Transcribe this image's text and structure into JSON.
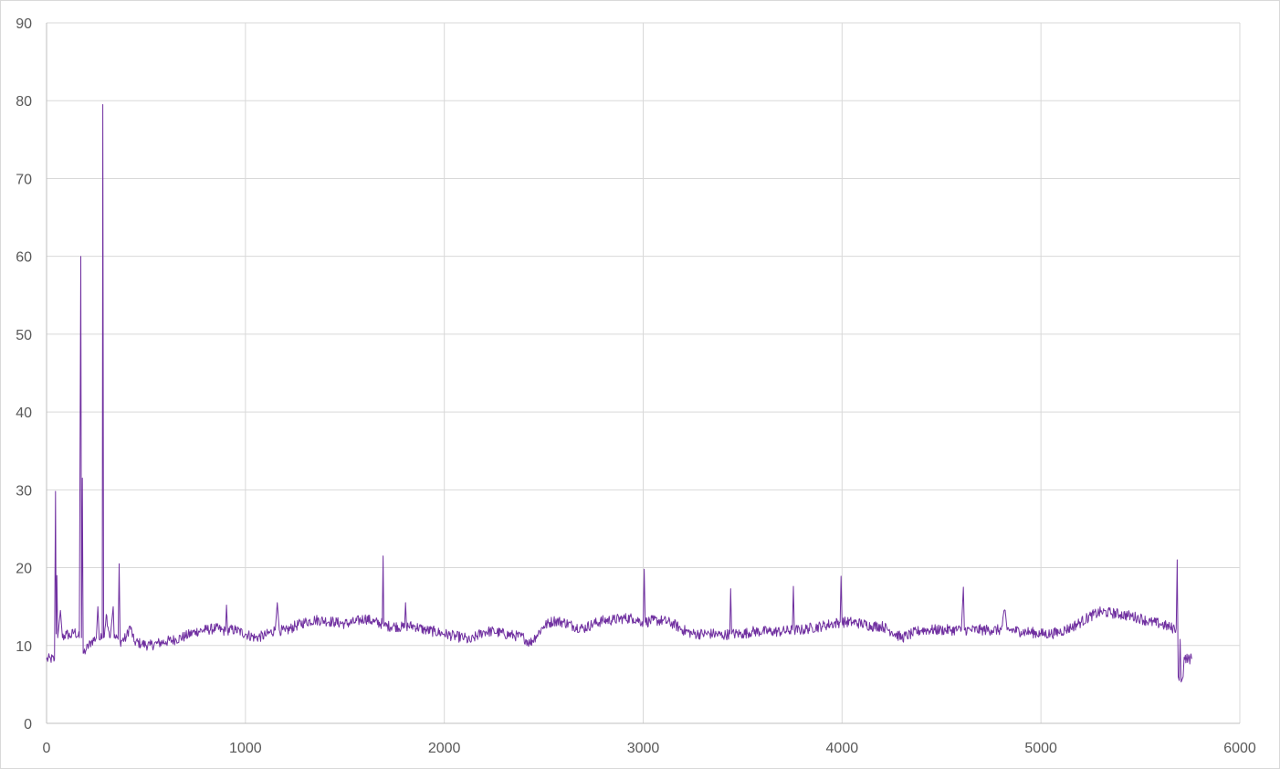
{
  "chart_data": {
    "type": "line",
    "title": "",
    "xlabel": "",
    "ylabel": "",
    "xlim": [
      0,
      6000
    ],
    "ylim": [
      0,
      90
    ],
    "x_ticks": [
      0,
      1000,
      2000,
      3000,
      4000,
      5000,
      6000
    ],
    "y_ticks": [
      0,
      10,
      20,
      30,
      40,
      50,
      60,
      70,
      80,
      90
    ],
    "grid": "major vertical and horizontal",
    "legend": "none",
    "series": [
      {
        "color": "#7030a0",
        "points": [
          [
            0,
            8.2
          ],
          [
            20,
            8.3
          ],
          [
            40,
            8.2
          ],
          [
            45,
            29.8
          ],
          [
            48,
            11.5
          ],
          [
            52,
            19
          ],
          [
            56,
            11
          ],
          [
            70,
            14.5
          ],
          [
            80,
            11
          ],
          [
            100,
            11.5
          ],
          [
            120,
            11.2
          ],
          [
            140,
            11.8
          ],
          [
            165,
            11
          ],
          [
            172,
            60
          ],
          [
            176,
            11
          ],
          [
            180,
            31.5
          ],
          [
            184,
            9
          ],
          [
            200,
            9.5
          ],
          [
            225,
            10.5
          ],
          [
            250,
            11
          ],
          [
            258,
            15
          ],
          [
            265,
            10.8
          ],
          [
            280,
            11
          ],
          [
            283,
            79.5
          ],
          [
            287,
            11
          ],
          [
            300,
            14
          ],
          [
            320,
            11
          ],
          [
            335,
            15
          ],
          [
            340,
            11
          ],
          [
            360,
            10.8
          ],
          [
            365,
            20.5
          ],
          [
            370,
            10.5
          ],
          [
            400,
            11
          ],
          [
            420,
            12.5
          ],
          [
            440,
            10.5
          ],
          [
            480,
            10.2
          ],
          [
            520,
            10
          ],
          [
            560,
            10.3
          ],
          [
            600,
            10.5
          ],
          [
            650,
            10.8
          ],
          [
            700,
            11.2
          ],
          [
            750,
            11.8
          ],
          [
            800,
            12
          ],
          [
            850,
            12.2
          ],
          [
            880,
            12
          ],
          [
            900,
            11.8
          ],
          [
            905,
            15.2
          ],
          [
            910,
            12
          ],
          [
            950,
            12
          ],
          [
            1000,
            11.5
          ],
          [
            1050,
            11
          ],
          [
            1100,
            11.3
          ],
          [
            1150,
            12
          ],
          [
            1160,
            15.5
          ],
          [
            1170,
            12
          ],
          [
            1200,
            11.8
          ],
          [
            1250,
            12.5
          ],
          [
            1300,
            13
          ],
          [
            1350,
            13.3
          ],
          [
            1400,
            13.2
          ],
          [
            1450,
            13
          ],
          [
            1500,
            12.8
          ],
          [
            1550,
            13
          ],
          [
            1600,
            13.5
          ],
          [
            1650,
            13
          ],
          [
            1688,
            12.8
          ],
          [
            1692,
            21.5
          ],
          [
            1696,
            12.5
          ],
          [
            1750,
            12.5
          ],
          [
            1800,
            12.3
          ],
          [
            1805,
            15.5
          ],
          [
            1810,
            12.5
          ],
          [
            1850,
            12.5
          ],
          [
            1900,
            12
          ],
          [
            1950,
            11.8
          ],
          [
            2000,
            11.5
          ],
          [
            2050,
            11.2
          ],
          [
            2100,
            11
          ],
          [
            2130,
            10.5
          ],
          [
            2150,
            11
          ],
          [
            2200,
            11.8
          ],
          [
            2250,
            11.8
          ],
          [
            2300,
            11.5
          ],
          [
            2350,
            11.3
          ],
          [
            2400,
            11
          ],
          [
            2430,
            10.3
          ],
          [
            2460,
            11.2
          ],
          [
            2500,
            12.5
          ],
          [
            2550,
            13.2
          ],
          [
            2600,
            13
          ],
          [
            2650,
            12.5
          ],
          [
            2700,
            12.2
          ],
          [
            2750,
            12.8
          ],
          [
            2800,
            13.2
          ],
          [
            2850,
            13.3
          ],
          [
            2900,
            13.5
          ],
          [
            2950,
            13.5
          ],
          [
            3000,
            13
          ],
          [
            3005,
            19.8
          ],
          [
            3010,
            13
          ],
          [
            3050,
            13.2
          ],
          [
            3100,
            13.2
          ],
          [
            3150,
            12.8
          ],
          [
            3200,
            12
          ],
          [
            3250,
            11.5
          ],
          [
            3300,
            11.5
          ],
          [
            3350,
            11.5
          ],
          [
            3400,
            11.3
          ],
          [
            3435,
            11.5
          ],
          [
            3440,
            17.3
          ],
          [
            3445,
            11.5
          ],
          [
            3500,
            11.5
          ],
          [
            3550,
            11.8
          ],
          [
            3600,
            11.8
          ],
          [
            3650,
            11.8
          ],
          [
            3700,
            11.8
          ],
          [
            3750,
            12
          ],
          [
            3755,
            17.6
          ],
          [
            3760,
            12
          ],
          [
            3800,
            12
          ],
          [
            3850,
            12.3
          ],
          [
            3900,
            12.5
          ],
          [
            3950,
            12.8
          ],
          [
            3990,
            13
          ],
          [
            3995,
            18.9
          ],
          [
            4000,
            13
          ],
          [
            4050,
            13
          ],
          [
            4100,
            12.8
          ],
          [
            4150,
            12.5
          ],
          [
            4200,
            12.5
          ],
          [
            4250,
            11.8
          ],
          [
            4300,
            11
          ],
          [
            4350,
            11.5
          ],
          [
            4400,
            12
          ],
          [
            4450,
            12
          ],
          [
            4500,
            12
          ],
          [
            4550,
            12
          ],
          [
            4600,
            12
          ],
          [
            4610,
            17.5
          ],
          [
            4615,
            12
          ],
          [
            4650,
            12
          ],
          [
            4700,
            12
          ],
          [
            4750,
            12
          ],
          [
            4800,
            12
          ],
          [
            4820,
            14.5
          ],
          [
            4830,
            12
          ],
          [
            4850,
            12
          ],
          [
            4900,
            11.8
          ],
          [
            4950,
            11.7
          ],
          [
            5000,
            11.5
          ],
          [
            5050,
            11.5
          ],
          [
            5100,
            11.8
          ],
          [
            5150,
            12.3
          ],
          [
            5200,
            13
          ],
          [
            5250,
            13.8
          ],
          [
            5300,
            14.3
          ],
          [
            5350,
            14.2
          ],
          [
            5400,
            14
          ],
          [
            5450,
            13.8
          ],
          [
            5500,
            13.5
          ],
          [
            5550,
            13
          ],
          [
            5600,
            12.8
          ],
          [
            5650,
            12.3
          ],
          [
            5680,
            12.2
          ],
          [
            5685,
            21
          ],
          [
            5690,
            6
          ],
          [
            5695,
            5.5
          ],
          [
            5700,
            10.8
          ],
          [
            5705,
            5.3
          ],
          [
            5715,
            6
          ],
          [
            5720,
            8.5
          ],
          [
            5740,
            8.3
          ],
          [
            5760,
            8.3
          ]
        ]
      }
    ]
  }
}
